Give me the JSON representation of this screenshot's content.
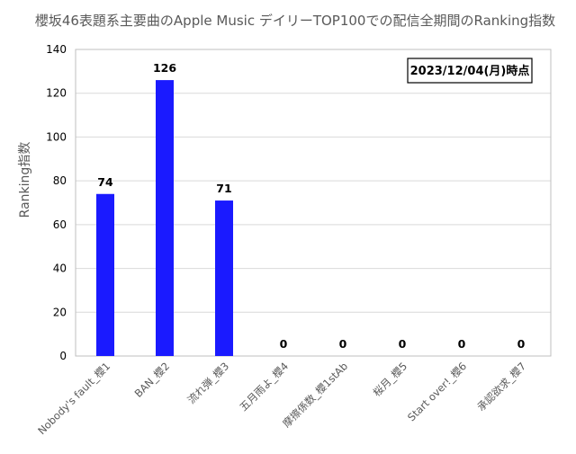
{
  "chart_data": {
    "type": "bar",
    "title": "櫻坂46表題系主要曲のApple Music デイリーTOP100での配信全期間のRanking指数",
    "xlabel": "",
    "ylabel": "Ranking指数",
    "categories": [
      "Nobody's fault_櫻1",
      "BAN_櫻2",
      "流れ弾_櫻3",
      "五月雨よ_櫻4",
      "摩擦係数_櫻1stAb",
      "桜月_櫻5",
      "Start over!_櫻6",
      "承認欲求_櫻7"
    ],
    "values": [
      74,
      126,
      71,
      0,
      0,
      0,
      0,
      0
    ],
    "data_labels": [
      "74",
      "126",
      "71",
      "0",
      "0",
      "0",
      "0",
      "0"
    ],
    "ylim": [
      0,
      140
    ],
    "yticks": [
      0,
      20,
      40,
      60,
      80,
      100,
      120,
      140
    ],
    "grid": true,
    "legend": "none",
    "bar_color": "#1a1aff",
    "annotation": "2023/12/04(月)時点"
  }
}
